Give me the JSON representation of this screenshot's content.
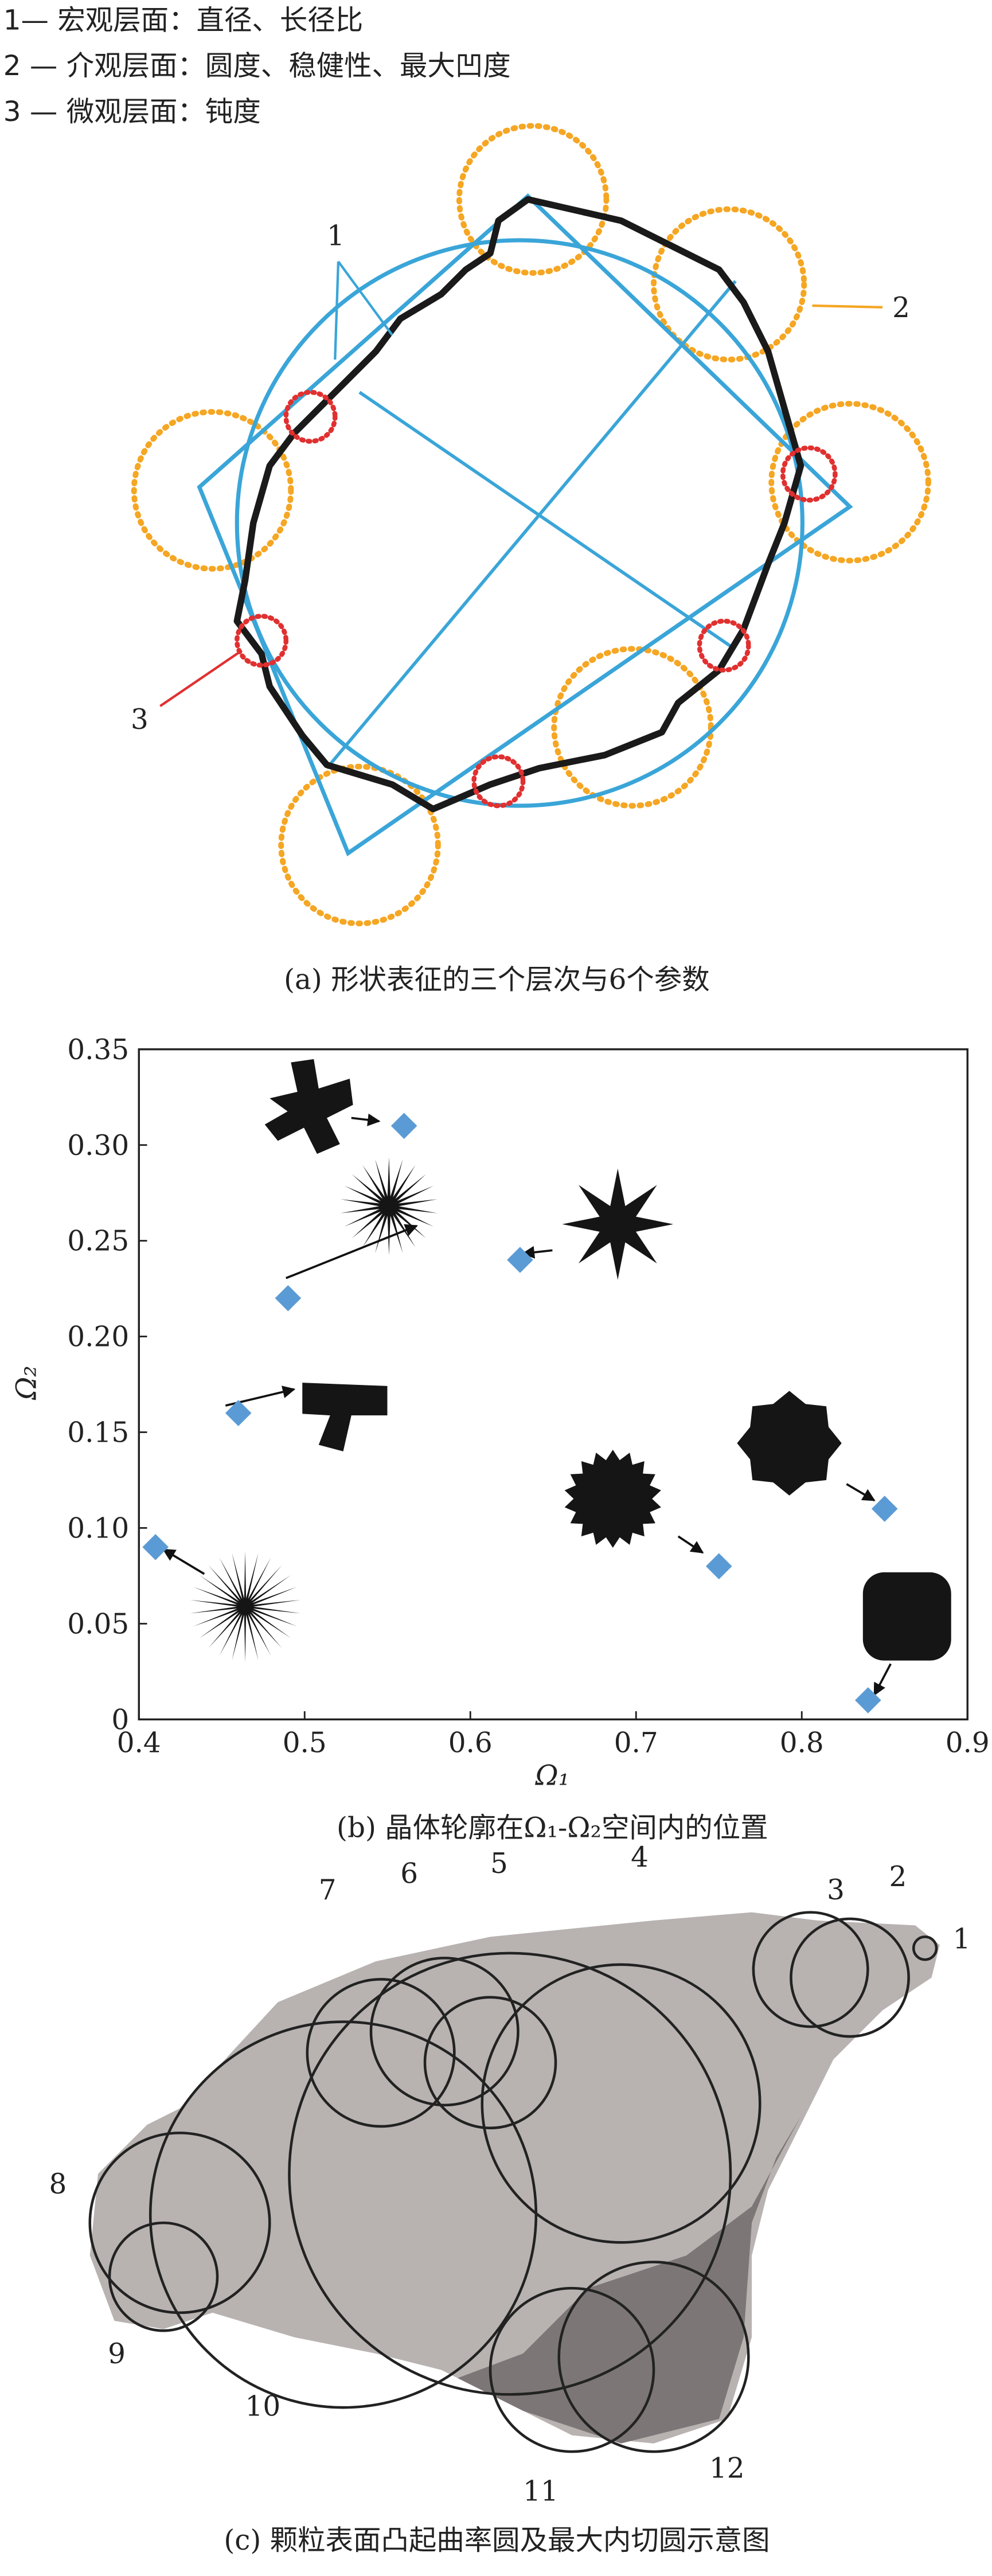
{
  "legend": [
    "1— 宏观层面：直径、长径比",
    "2 — 介观层面：圆度、稳健性、最大凹度",
    "3 — 微观层面：钝度"
  ],
  "panel_a": {
    "labels": [
      "1",
      "2",
      "3"
    ],
    "caption": "(a) 形状表征的三个层次与6个参数"
  },
  "chart_data": {
    "type": "scatter",
    "x_label": "Ω₁",
    "y_label": "Ω₂",
    "x": [
      0.56,
      0.63,
      0.49,
      0.46,
      0.85,
      0.75,
      0.41,
      0.84
    ],
    "values": [
      0.31,
      0.24,
      0.22,
      0.16,
      0.11,
      0.08,
      0.09,
      0.01
    ],
    "color": "#5b9bd5",
    "xlim": [
      0.4,
      0.9
    ],
    "xticks": [
      0.4,
      0.5,
      0.6,
      0.7,
      0.8,
      0.9
    ],
    "ylim": [
      0,
      0.35
    ],
    "yticks": [
      0,
      0.05,
      {
        "value": 0.1,
        "label": "0.10"
      },
      0.15,
      {
        "value": 0.2,
        "label": "0.20"
      },
      0.25,
      {
        "value": 0.3,
        "label": "0.30"
      },
      0.35
    ],
    "caption": "(b) 晶体轮廓在Ω₁-Ω₂空间内的位置"
  },
  "panel_c": {
    "labels": [
      "1",
      "2",
      "3",
      "4",
      "5",
      "6",
      "7",
      "8",
      "9",
      "10",
      "11",
      "12"
    ],
    "caption": "(c) 颗粒表面凸起曲率圆及最大内切圆示意图"
  }
}
